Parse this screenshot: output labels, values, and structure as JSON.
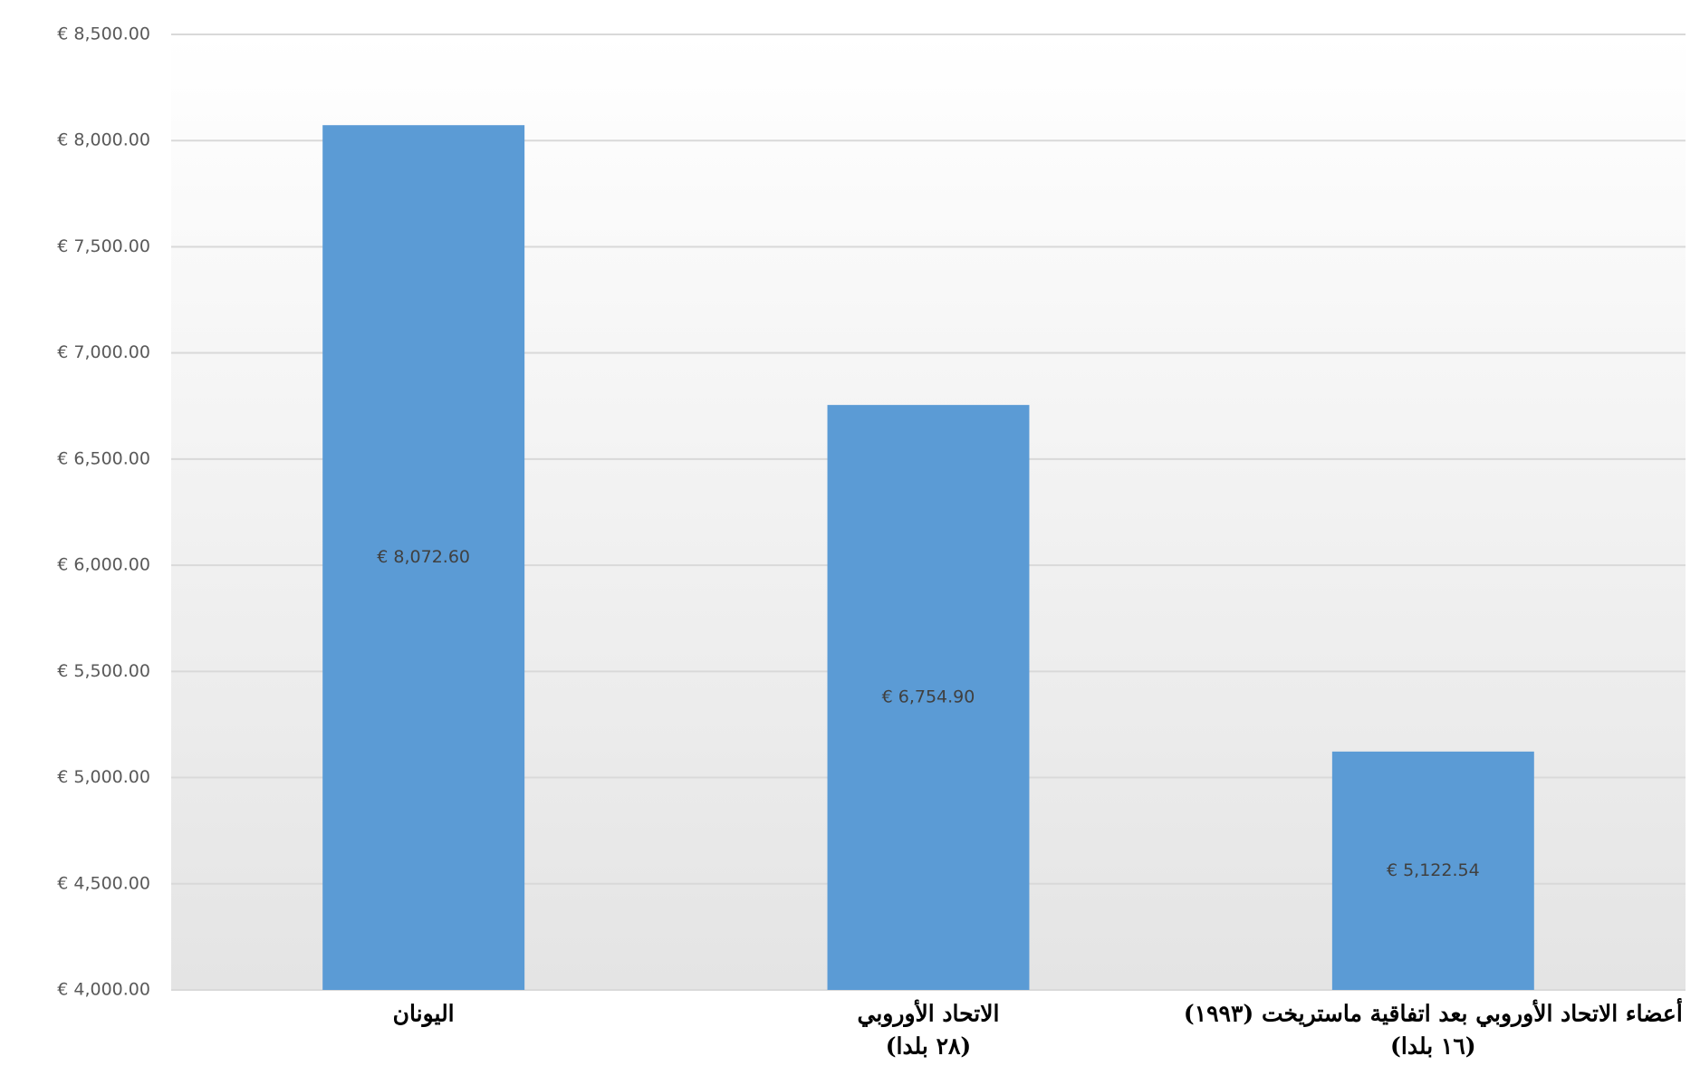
{
  "chart_data": {
    "type": "bar",
    "categories": [
      [
        "اليونان"
      ],
      [
        "الاتحاد الأوروبي",
        "(٢٨ بلدا)"
      ],
      [
        "أعضاء الاتحاد الأوروبي بعد اتفاقية ماستريخت (١٩٩٣)",
        "(١٦ بلدا)"
      ]
    ],
    "values": [
      8072.6,
      6754.9,
      5122.54
    ],
    "value_labels": [
      "€ 8,072.60",
      "€ 6,754.90",
      "€ 5,122.54"
    ],
    "color": "#5b9bd5",
    "ylim": [
      4000,
      8500
    ],
    "yticks": [
      {
        "value": 4000,
        "label": "€ 4,000.00"
      },
      {
        "value": 4500,
        "label": "€ 4,500.00"
      },
      {
        "value": 5000,
        "label": "€ 5,000.00"
      },
      {
        "value": 5500,
        "label": "€ 5,500.00"
      },
      {
        "value": 6000,
        "label": "€ 6,000.00"
      },
      {
        "value": 6500,
        "label": "€ 6,500.00"
      },
      {
        "value": 7000,
        "label": "€ 7,000.00"
      },
      {
        "value": 7500,
        "label": "€ 7,500.00"
      },
      {
        "value": 8000,
        "label": "€ 8,000.00"
      },
      {
        "value": 8500,
        "label": "€ 8,500.00"
      }
    ],
    "grid": true
  }
}
